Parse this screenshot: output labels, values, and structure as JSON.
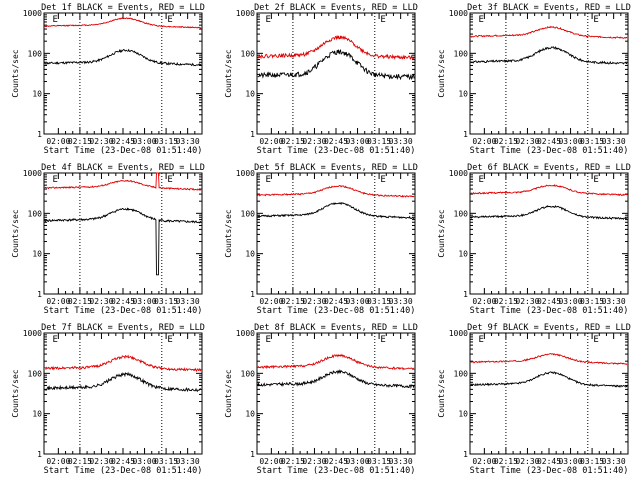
{
  "figure": {
    "ylabel": "Counts/sec",
    "xlabel": "Start Time (23-Dec-08 01:51:40)",
    "marker_label": "E",
    "colors": {
      "events": "#000000",
      "lld": "#e00000",
      "dotted": "#000000"
    }
  },
  "chart_data": [
    {
      "type": "line",
      "title": "Det 1f BLACK = Events, RED = LLD",
      "x_ticks": [
        "02:00",
        "02:15",
        "02:30",
        "02:45",
        "03:00",
        "03:15",
        "03:30"
      ],
      "y_ticks": [
        "1",
        "10",
        "100",
        "1000"
      ],
      "ylim": [
        1,
        1000
      ],
      "yscale": "log",
      "grid": false,
      "series": [
        {
          "name": "Events",
          "baseline": 60,
          "peak": 120,
          "noise": 0.06,
          "seed": 11
        },
        {
          "name": "LLD",
          "baseline": 500,
          "peak": 750,
          "noise": 0.03,
          "seed": 12
        }
      ]
    },
    {
      "type": "line",
      "title": "Det 2f BLACK = Events, RED = LLD",
      "x_ticks": [
        "02:00",
        "02:15",
        "02:30",
        "02:45",
        "03:00",
        "03:15",
        "03:30"
      ],
      "y_ticks": [
        "1",
        "10",
        "100",
        "1000"
      ],
      "ylim": [
        1,
        1000
      ],
      "yscale": "log",
      "grid": false,
      "series": [
        {
          "name": "Events",
          "baseline": 30,
          "peak": 110,
          "noise": 0.14,
          "seed": 21
        },
        {
          "name": "LLD",
          "baseline": 90,
          "peak": 250,
          "noise": 0.1,
          "seed": 22
        }
      ]
    },
    {
      "type": "line",
      "title": "Det 3f BLACK = Events, RED = LLD",
      "x_ticks": [
        "02:00",
        "02:15",
        "02:30",
        "02:45",
        "03:00",
        "03:15",
        "03:30"
      ],
      "y_ticks": [
        "1",
        "10",
        "100",
        "1000"
      ],
      "ylim": [
        1,
        1000
      ],
      "yscale": "log",
      "grid": false,
      "series": [
        {
          "name": "Events",
          "baseline": 65,
          "peak": 140,
          "noise": 0.06,
          "seed": 31
        },
        {
          "name": "LLD",
          "baseline": 280,
          "peak": 450,
          "noise": 0.04,
          "seed": 32
        }
      ]
    },
    {
      "type": "line",
      "title": "Det 4f BLACK = Events, RED = LLD",
      "x_ticks": [
        "02:00",
        "02:15",
        "02:30",
        "02:45",
        "03:00",
        "03:15",
        "03:30"
      ],
      "y_ticks": [
        "1",
        "10",
        "100",
        "1000"
      ],
      "ylim": [
        1,
        1000
      ],
      "yscale": "log",
      "grid": false,
      "spike": {
        "time": "03:09",
        "events_min": 3,
        "lld_max": 1000
      },
      "series": [
        {
          "name": "Events",
          "baseline": 70,
          "peak": 130,
          "noise": 0.06,
          "seed": 41
        },
        {
          "name": "LLD",
          "baseline": 450,
          "peak": 650,
          "noise": 0.04,
          "seed": 42
        }
      ]
    },
    {
      "type": "line",
      "title": "Det 5f BLACK = Events, RED = LLD",
      "x_ticks": [
        "02:00",
        "02:15",
        "02:30",
        "02:45",
        "03:00",
        "03:15",
        "03:30"
      ],
      "y_ticks": [
        "1",
        "10",
        "100",
        "1000"
      ],
      "ylim": [
        1,
        1000
      ],
      "yscale": "log",
      "grid": false,
      "series": [
        {
          "name": "Events",
          "baseline": 90,
          "peak": 180,
          "noise": 0.05,
          "seed": 51
        },
        {
          "name": "LLD",
          "baseline": 300,
          "peak": 480,
          "noise": 0.04,
          "seed": 52
        }
      ]
    },
    {
      "type": "line",
      "title": "Det 6f BLACK = Events, RED = LLD",
      "x_ticks": [
        "02:00",
        "02:15",
        "02:30",
        "02:45",
        "03:00",
        "03:15",
        "03:30"
      ],
      "y_ticks": [
        "1",
        "10",
        "100",
        "1000"
      ],
      "ylim": [
        1,
        1000
      ],
      "yscale": "log",
      "grid": false,
      "series": [
        {
          "name": "Events",
          "baseline": 85,
          "peak": 150,
          "noise": 0.05,
          "seed": 61
        },
        {
          "name": "LLD",
          "baseline": 330,
          "peak": 500,
          "noise": 0.04,
          "seed": 62
        }
      ]
    },
    {
      "type": "line",
      "title": "Det 7f BLACK = Events, RED = LLD",
      "x_ticks": [
        "02:00",
        "02:15",
        "02:30",
        "02:45",
        "03:00",
        "03:15",
        "03:30"
      ],
      "y_ticks": [
        "1",
        "10",
        "100",
        "1000"
      ],
      "ylim": [
        1,
        1000
      ],
      "yscale": "log",
      "grid": false,
      "series": [
        {
          "name": "Events",
          "baseline": 45,
          "peak": 95,
          "noise": 0.09,
          "seed": 71
        },
        {
          "name": "LLD",
          "baseline": 140,
          "peak": 260,
          "noise": 0.07,
          "seed": 72
        }
      ]
    },
    {
      "type": "line",
      "title": "Det 8f BLACK = Events, RED = LLD",
      "x_ticks": [
        "02:00",
        "02:15",
        "02:30",
        "02:45",
        "03:00",
        "03:15",
        "03:30"
      ],
      "y_ticks": [
        "1",
        "10",
        "100",
        "1000"
      ],
      "ylim": [
        1,
        1000
      ],
      "yscale": "log",
      "grid": false,
      "series": [
        {
          "name": "Events",
          "baseline": 55,
          "peak": 110,
          "noise": 0.08,
          "seed": 81
        },
        {
          "name": "LLD",
          "baseline": 150,
          "peak": 280,
          "noise": 0.06,
          "seed": 82
        }
      ]
    },
    {
      "type": "line",
      "title": "Det 9f BLACK = Events, RED = LLD",
      "x_ticks": [
        "02:00",
        "02:15",
        "02:30",
        "02:45",
        "03:00",
        "03:15",
        "03:30"
      ],
      "y_ticks": [
        "1",
        "10",
        "100",
        "1000"
      ],
      "ylim": [
        1,
        1000
      ],
      "yscale": "log",
      "grid": false,
      "series": [
        {
          "name": "Events",
          "baseline": 55,
          "peak": 105,
          "noise": 0.05,
          "seed": 91
        },
        {
          "name": "LLD",
          "baseline": 200,
          "peak": 300,
          "noise": 0.04,
          "seed": 92
        }
      ]
    }
  ]
}
